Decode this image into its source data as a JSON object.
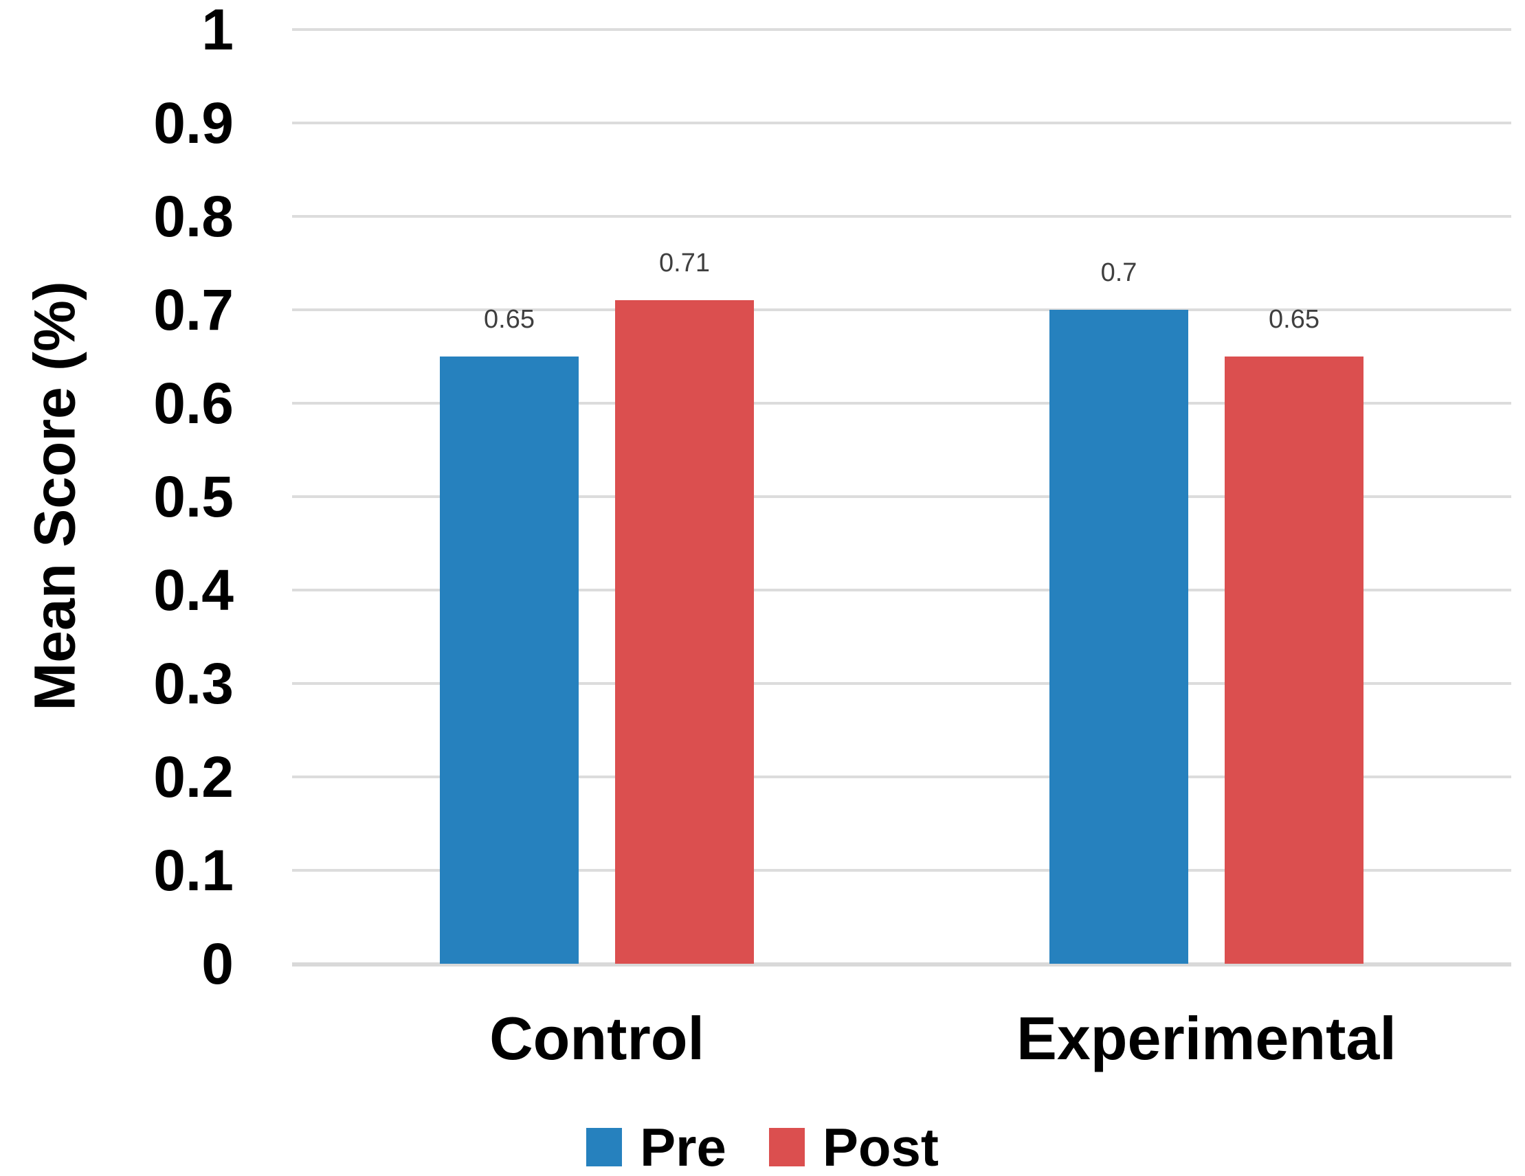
{
  "chart_data": {
    "type": "bar",
    "title": "",
    "xlabel": "",
    "ylabel": "Mean Score (%)",
    "categories": [
      "Control",
      "Experimental"
    ],
    "series": [
      {
        "name": "Pre",
        "color": "#2681BE",
        "values": [
          0.65,
          0.7
        ],
        "labels": [
          "0.65",
          "0.7"
        ]
      },
      {
        "name": "Post",
        "color": "#DB4F4F",
        "values": [
          0.71,
          0.65
        ],
        "labels": [
          "0.71",
          "0.65"
        ]
      }
    ],
    "ylim": [
      0,
      1
    ],
    "ytick_step": 0.1,
    "yticks": [
      "1",
      "0.9",
      "0.8",
      "0.7",
      "0.6",
      "0.5",
      "0.4",
      "0.3",
      "0.2",
      "0.1",
      "0"
    ],
    "grid": true,
    "legend_position": "bottom"
  },
  "colors": {
    "background": "#FFFFFF",
    "gridline": "#DCDCDC",
    "axis_line": "#D9D9D9",
    "tick_text": "#000000",
    "data_label_text": "#3F3F3F",
    "pre_blue": "#2681BE",
    "post_red": "#DB4F4F"
  }
}
